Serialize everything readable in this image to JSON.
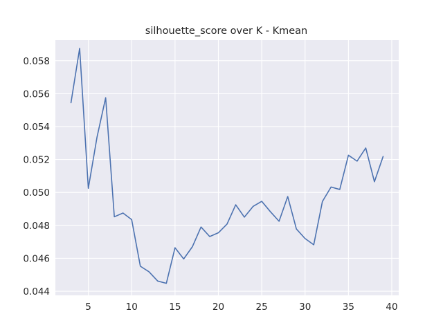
{
  "chart_data": {
    "type": "line",
    "title": "silhouette_score over K - Kmean",
    "xlabel": "",
    "ylabel": "",
    "xlim": [
      1.2,
      40.8
    ],
    "ylim": [
      0.04375,
      0.05925
    ],
    "xticks": [
      5,
      10,
      15,
      20,
      25,
      30,
      35,
      40
    ],
    "yticks": [
      0.044,
      0.046,
      0.048,
      0.05,
      0.052,
      0.054,
      0.056,
      0.058
    ],
    "ytick_labels": [
      "0.044",
      "0.046",
      "0.048",
      "0.050",
      "0.052",
      "0.054",
      "0.056",
      "0.058"
    ],
    "grid": true,
    "background": "#eaeaf2",
    "series": [
      {
        "color": "#4c72b0",
        "x": [
          3,
          4,
          5,
          6,
          7,
          8,
          9,
          10,
          11,
          12,
          13,
          14,
          15,
          16,
          17,
          18,
          19,
          20,
          21,
          22,
          23,
          24,
          25,
          26,
          27,
          28,
          29,
          30,
          31,
          32,
          33,
          34,
          35,
          36,
          37,
          38,
          39
        ],
        "y": [
          0.05545,
          0.05875,
          0.05025,
          0.05335,
          0.05575,
          0.04852,
          0.04875,
          0.04835,
          0.04552,
          0.04518,
          0.04462,
          0.04448,
          0.04664,
          0.04596,
          0.0467,
          0.0479,
          0.04732,
          0.04755,
          0.04808,
          0.04925,
          0.0485,
          0.04915,
          0.04946,
          0.04883,
          0.04825,
          0.04975,
          0.04778,
          0.0472,
          0.04682,
          0.04945,
          0.05033,
          0.05018,
          0.05226,
          0.0519,
          0.0527,
          0.05065,
          0.05218
        ]
      }
    ]
  }
}
